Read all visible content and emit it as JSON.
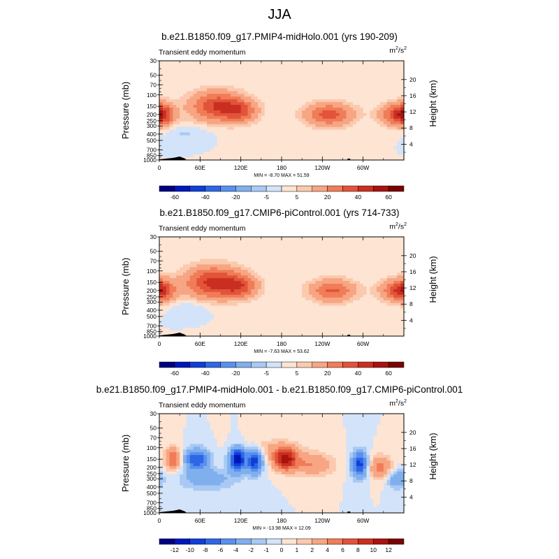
{
  "figure_title": "JJA",
  "chart_data": [
    {
      "type": "heatmap",
      "title": "b.e21.B1850.f09_g17.PMIP4-midHolo.001 (yrs 190-209)",
      "subtitle": "Transient eddy momentum",
      "units": "m",
      "units_exp": "2",
      "units_den": "/s",
      "units_den_exp": "2",
      "ylabel": "Pressure (mb)",
      "ylabel_right": "Height (km)",
      "x_ticks": [
        "0",
        "60E",
        "120E",
        "180",
        "120W",
        "60W"
      ],
      "x_tick_lon": [
        0,
        60,
        120,
        180,
        240,
        300
      ],
      "xlim": [
        0,
        360
      ],
      "y_ticks": [
        "30",
        "50",
        "70",
        "100",
        "150",
        "200",
        "250",
        "300",
        "400",
        "500",
        "700",
        "850",
        "1000"
      ],
      "y_tick_p": [
        30,
        50,
        70,
        100,
        150,
        200,
        250,
        300,
        400,
        500,
        700,
        850,
        1000
      ],
      "ylim": [
        30,
        1000
      ],
      "y_scale": "log",
      "height_ticks": [
        "4",
        "8",
        "12",
        "16",
        "20"
      ],
      "height_tick_km": [
        4,
        8,
        12,
        16,
        20
      ],
      "stats": "MIN = -8.70  MAX = 51.59",
      "min": -8.7,
      "max": 51.59,
      "colorbar_labels": [
        "-60",
        "-40",
        "-20",
        "-5",
        "5",
        "20",
        "40",
        "60"
      ],
      "levels": [
        -70,
        -60,
        -50,
        -40,
        -30,
        -20,
        -10,
        -5,
        0,
        5,
        10,
        20,
        30,
        40,
        50,
        60,
        70
      ],
      "features": [
        {
          "lon": 85,
          "p": 150,
          "amp": 40,
          "wlon": 28,
          "wlogp": 0.16
        },
        {
          "lon": 120,
          "p": 180,
          "amp": 25,
          "wlon": 18,
          "wlogp": 0.12
        },
        {
          "lon": 250,
          "p": 200,
          "amp": 36,
          "wlon": 25,
          "wlogp": 0.12
        },
        {
          "lon": 350,
          "p": 200,
          "amp": 34,
          "wlon": 18,
          "wlogp": 0.12
        },
        {
          "lon": 5,
          "p": 200,
          "amp": 28,
          "wlon": 12,
          "wlogp": 0.12
        },
        {
          "lon": 40,
          "p": 380,
          "amp": -6,
          "wlon": 22,
          "wlogp": 0.08
        }
      ]
    },
    {
      "type": "heatmap",
      "title": "b.e21.B1850.f09_g17.CMIP6-piControl.001 (yrs 714-733)",
      "subtitle": "Transient eddy momentum",
      "units": "m",
      "units_exp": "2",
      "units_den": "/s",
      "units_den_exp": "2",
      "ylabel": "Pressure (mb)",
      "ylabel_right": "Height (km)",
      "x_ticks": [
        "0",
        "60E",
        "120E",
        "180",
        "120W",
        "60W"
      ],
      "x_tick_lon": [
        0,
        60,
        120,
        180,
        240,
        300
      ],
      "xlim": [
        0,
        360
      ],
      "y_ticks": [
        "30",
        "50",
        "70",
        "100",
        "150",
        "200",
        "250",
        "300",
        "400",
        "500",
        "700",
        "850",
        "1000"
      ],
      "y_tick_p": [
        30,
        50,
        70,
        100,
        150,
        200,
        250,
        300,
        400,
        500,
        700,
        850,
        1000
      ],
      "ylim": [
        30,
        1000
      ],
      "y_scale": "log",
      "height_ticks": [
        "4",
        "8",
        "12",
        "16",
        "20"
      ],
      "height_tick_km": [
        4,
        8,
        12,
        16,
        20
      ],
      "stats": "MIN = -7.63  MAX = 53.62",
      "min": -7.63,
      "max": 53.62,
      "colorbar_labels": [
        "-60",
        "-40",
        "-20",
        "-5",
        "5",
        "20",
        "40",
        "60"
      ],
      "levels": [
        -70,
        -60,
        -50,
        -40,
        -30,
        -20,
        -10,
        -5,
        0,
        5,
        10,
        20,
        30,
        40,
        50,
        60,
        70
      ],
      "features": [
        {
          "lon": 80,
          "p": 150,
          "amp": 44,
          "wlon": 30,
          "wlogp": 0.17
        },
        {
          "lon": 120,
          "p": 175,
          "amp": 26,
          "wlon": 18,
          "wlogp": 0.12
        },
        {
          "lon": 255,
          "p": 200,
          "amp": 32,
          "wlon": 24,
          "wlogp": 0.12
        },
        {
          "lon": 350,
          "p": 200,
          "amp": 32,
          "wlon": 18,
          "wlogp": 0.12
        },
        {
          "lon": 5,
          "p": 200,
          "amp": 26,
          "wlon": 12,
          "wlogp": 0.12
        },
        {
          "lon": 45,
          "p": 380,
          "amp": -5,
          "wlon": 20,
          "wlogp": 0.08
        }
      ]
    },
    {
      "type": "heatmap",
      "title": "b.e21.B1850.f09_g17.PMIP4-midHolo.001 - b.e21.B1850.f09_g17.CMIP6-piControl.001",
      "subtitle": "Transient eddy momentum",
      "units": "m",
      "units_exp": "2",
      "units_den": "/s",
      "units_den_exp": "2",
      "ylabel": "Pressure (mb)",
      "ylabel_right": "Height (km)",
      "x_ticks": [
        "0",
        "60E",
        "120E",
        "180",
        "120W",
        "60W"
      ],
      "x_tick_lon": [
        0,
        60,
        120,
        180,
        240,
        300
      ],
      "xlim": [
        0,
        360
      ],
      "y_ticks": [
        "30",
        "50",
        "70",
        "100",
        "150",
        "200",
        "250",
        "300",
        "400",
        "500",
        "700",
        "850",
        "1000"
      ],
      "y_tick_p": [
        30,
        50,
        70,
        100,
        150,
        200,
        250,
        300,
        400,
        500,
        700,
        850,
        1000
      ],
      "ylim": [
        30,
        1000
      ],
      "y_scale": "log",
      "height_ticks": [
        "4",
        "8",
        "12",
        "16",
        "20"
      ],
      "height_tick_km": [
        4,
        8,
        12,
        16,
        20
      ],
      "stats": "MIN = -13.98  MAX = 12.09",
      "min": -13.98,
      "max": 12.09,
      "colorbar_labels": [
        "-12",
        "-10",
        "-8",
        "-6",
        "-4",
        "-2",
        "-1",
        "0",
        "1",
        "2",
        "4",
        "6",
        "8",
        "10",
        "12"
      ],
      "levels": [
        -14,
        -12,
        -10,
        -8,
        -6,
        -4,
        -2,
        -1,
        0,
        1,
        2,
        4,
        6,
        8,
        10,
        12,
        14
      ],
      "features": [
        {
          "lon": 20,
          "p": 150,
          "amp": 6,
          "wlon": 8,
          "wlogp": 0.12
        },
        {
          "lon": 55,
          "p": 150,
          "amp": -8,
          "wlon": 12,
          "wlogp": 0.11
        },
        {
          "lon": 115,
          "p": 150,
          "amp": -12,
          "wlon": 8,
          "wlogp": 0.12
        },
        {
          "lon": 140,
          "p": 160,
          "amp": -9,
          "wlon": 8,
          "wlogp": 0.13
        },
        {
          "lon": 185,
          "p": 150,
          "amp": 11,
          "wlon": 12,
          "wlogp": 0.11
        },
        {
          "lon": 225,
          "p": 180,
          "amp": 4,
          "wlon": 22,
          "wlogp": 0.12
        },
        {
          "lon": 295,
          "p": 180,
          "amp": -9,
          "wlon": 8,
          "wlogp": 0.14
        },
        {
          "lon": 325,
          "p": 200,
          "amp": 5,
          "wlon": 12,
          "wlogp": 0.12
        },
        {
          "lon": 350,
          "p": 300,
          "amp": -4,
          "wlon": 10,
          "wlogp": 0.1
        },
        {
          "lon": 70,
          "p": 300,
          "amp": -3,
          "wlon": 30,
          "wlogp": 0.12
        },
        {
          "lon": 170,
          "p": 100,
          "amp": 2,
          "wlon": 30,
          "wlogp": 0.1
        }
      ]
    }
  ],
  "colormap": [
    "#00007f",
    "#0016bd",
    "#0f3fd6",
    "#2f66e6",
    "#5890ef",
    "#80afee",
    "#a8c9f3",
    "#d3e3f9",
    "#fde4d3",
    "#fbc9ae",
    "#f7a583",
    "#f07c58",
    "#e2543a",
    "#c92f20",
    "#a8130f",
    "#7a0403"
  ]
}
